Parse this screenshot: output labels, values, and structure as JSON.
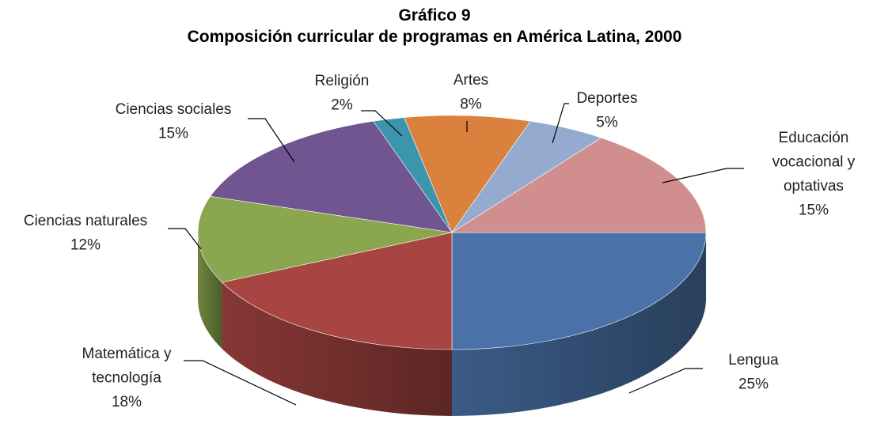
{
  "chart_data": {
    "type": "pie",
    "title": "Gráfico 9",
    "subtitle": "Composición curricular de programas en América Latina, 2000",
    "three_d": true,
    "slices": [
      {
        "label": [
          "Lengua"
        ],
        "value": 25,
        "pct_label": "25%",
        "color": "#4A72A8"
      },
      {
        "label": [
          "Matemática y",
          "tecnología"
        ],
        "value": 18,
        "pct_label": "18%",
        "color": "#A84542"
      },
      {
        "label": [
          "Ciencias naturales"
        ],
        "value": 12,
        "pct_label": "12%",
        "color": "#8AA64E"
      },
      {
        "label": [
          "Ciencias sociales"
        ],
        "value": 15,
        "pct_label": "15%",
        "color": "#705590"
      },
      {
        "label": [
          "Religión"
        ],
        "value": 2,
        "pct_label": "2%",
        "color": "#3B95AC"
      },
      {
        "label": [
          "Artes"
        ],
        "value": 8,
        "pct_label": "8%",
        "color": "#D9813D"
      },
      {
        "label": [
          "Deportes"
        ],
        "value": 5,
        "pct_label": "5%",
        "color": "#94AACF"
      },
      {
        "label": [
          "Educación",
          "vocacional y",
          "optativas"
        ],
        "value": 15,
        "pct_label": "15%",
        "color": "#D08F8E"
      }
    ]
  }
}
